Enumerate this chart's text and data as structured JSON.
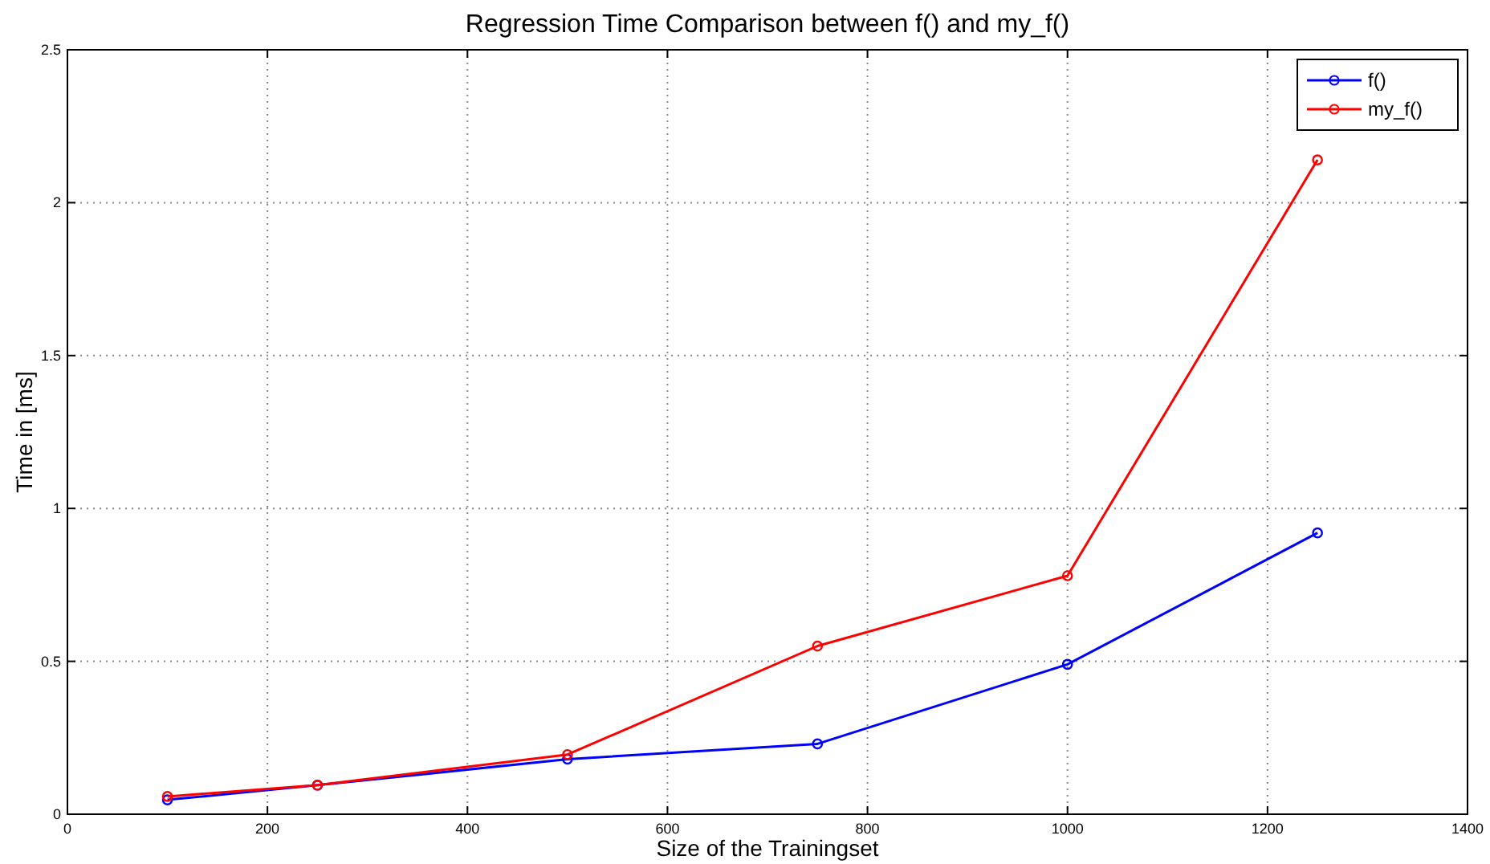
{
  "chart_data": {
    "type": "line",
    "title": "Regression Time Comparison between f() and my_f()",
    "xlabel": "Size of the Trainingset",
    "ylabel": "Time in [ms]",
    "x": [
      100,
      250,
      500,
      750,
      1000,
      1250
    ],
    "series": [
      {
        "name": "f()",
        "color": "#0000ff",
        "values": [
          0.047,
          0.095,
          0.18,
          0.23,
          0.49,
          0.92
        ]
      },
      {
        "name": "my_f()",
        "color": "#ff0000",
        "values": [
          0.058,
          0.095,
          0.195,
          0.55,
          0.78,
          2.14
        ]
      }
    ],
    "xlim": [
      0,
      1400
    ],
    "xticks": [
      0,
      200,
      400,
      600,
      800,
      1000,
      1200,
      1400
    ],
    "ylim": [
      0,
      2.5
    ],
    "yticks": [
      0,
      0.5,
      1,
      1.5,
      2,
      2.5
    ],
    "grid": true,
    "legend": "top right",
    "marker": "circle",
    "line_style": "solid"
  }
}
